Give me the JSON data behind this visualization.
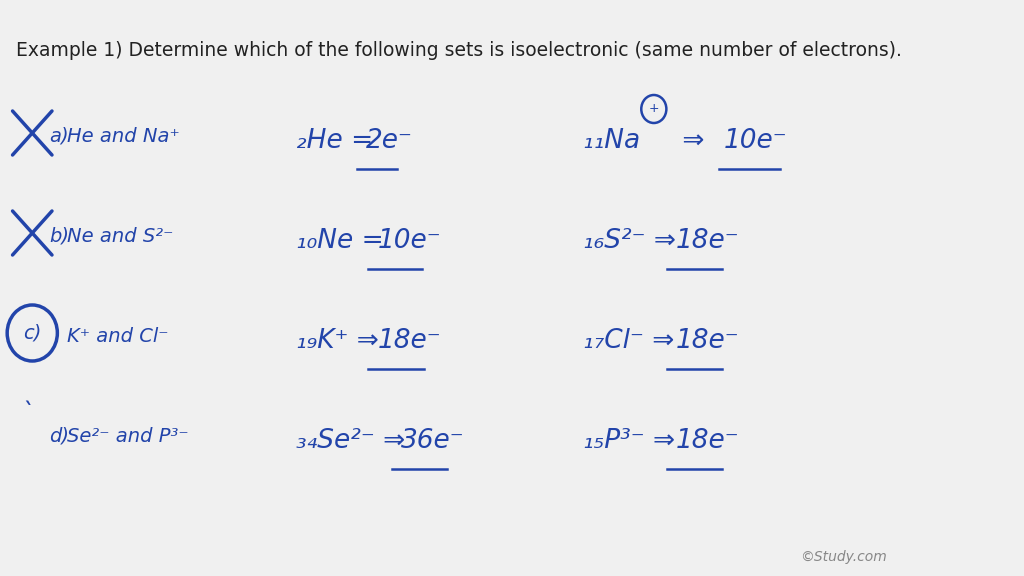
{
  "bg_color": "#f0f0f0",
  "text_color": "#2244aa",
  "title": "Example 1) Determine which of the following sets is isoelectronic (same number of electrons).",
  "title_color": "#222222",
  "title_fontsize": 13.5,
  "watermark": "©Study.com",
  "rows": [
    {
      "label": "a",
      "label_text": "He and Na⁺",
      "crossed": true,
      "circled": false,
      "left_expr": "₂He = 2e⁻",
      "right_expr": "₁₁Na⊕ ⇒ 10e⁻",
      "right_has_circle_plus": true
    },
    {
      "label": "b",
      "label_text": "Ne and S²⁻",
      "crossed": true,
      "circled": false,
      "left_expr": "₁₀Ne = 10e⁻",
      "right_expr": "₁₆S²⁻ ⇒ 18e⁻"
    },
    {
      "label": "c",
      "label_text": "K⁺ and Cl⁻",
      "crossed": false,
      "circled": true,
      "left_expr": "₁₉K⁺ ⇒ 18e⁻",
      "right_expr": "₁₇Cl⁻ ⇒ 18e⁻"
    },
    {
      "label": "d",
      "label_text": "Se²⁻ and P³⁻",
      "crossed": false,
      "circled": false,
      "tick": true,
      "left_expr": "₃₄Se²⁻ ⇒ 36e⁻",
      "right_expr": "₁₅P³⁻ ⇒ 18e⁻"
    }
  ]
}
